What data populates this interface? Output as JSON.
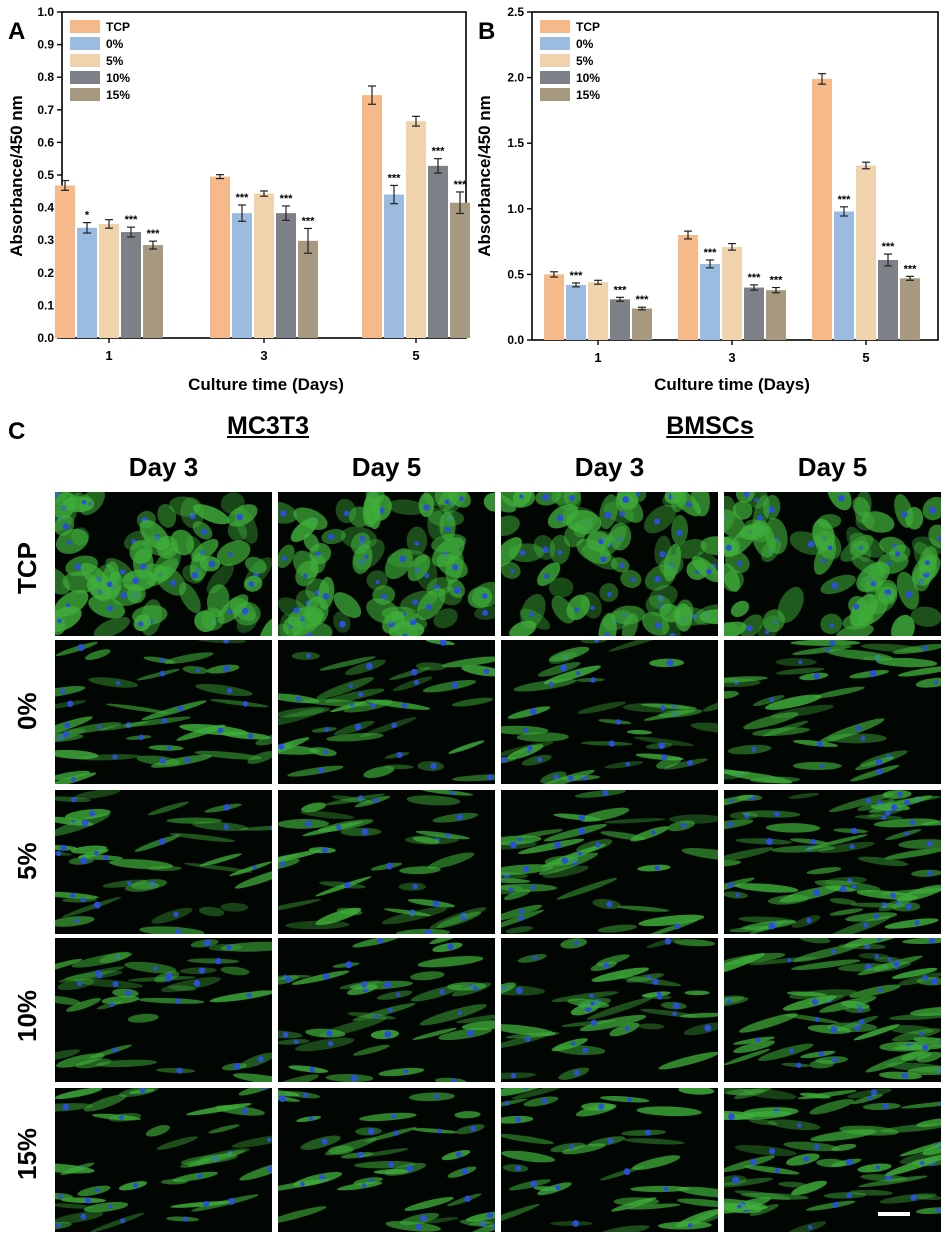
{
  "panel_labels": {
    "a": "A",
    "b": "B",
    "c": "C"
  },
  "chart_data": [
    {
      "type": "bar",
      "panel": "A",
      "categories": [
        "1",
        "3",
        "5"
      ],
      "xlabel": "Culture time (Days)",
      "ylabel": "Absorbance/450 nm",
      "ylim": [
        0,
        1.0
      ],
      "yticks": [
        "0.0",
        "0.1",
        "0.2",
        "0.3",
        "0.4",
        "0.5",
        "0.6",
        "0.7",
        "0.8",
        "0.9",
        "1.0"
      ],
      "legend_position": "top-left",
      "grid": false,
      "series": [
        {
          "name": "TCP",
          "color": "#f5b98a",
          "values": [
            0.468,
            0.495,
            0.745
          ],
          "errors": [
            0.015,
            0.006,
            0.028
          ],
          "sig": [
            "",
            "",
            ""
          ]
        },
        {
          "name": "0%",
          "color": "#9bbbe0",
          "values": [
            0.338,
            0.383,
            0.44
          ],
          "errors": [
            0.016,
            0.025,
            0.028
          ],
          "sig": [
            "*",
            "***",
            "***"
          ]
        },
        {
          "name": "5%",
          "color": "#f0d3ad",
          "values": [
            0.35,
            0.443,
            0.665
          ],
          "errors": [
            0.013,
            0.008,
            0.015
          ],
          "sig": [
            "",
            "",
            ""
          ]
        },
        {
          "name": "10%",
          "color": "#7e8087",
          "values": [
            0.325,
            0.383,
            0.528
          ],
          "errors": [
            0.015,
            0.022,
            0.022
          ],
          "sig": [
            "***",
            "***",
            "***"
          ]
        },
        {
          "name": "15%",
          "color": "#a79880",
          "values": [
            0.285,
            0.298,
            0.415
          ],
          "errors": [
            0.012,
            0.038,
            0.033
          ],
          "sig": [
            "***",
            "***",
            "***"
          ]
        }
      ]
    },
    {
      "type": "bar",
      "panel": "B",
      "categories": [
        "1",
        "3",
        "5"
      ],
      "xlabel": "Culture time (Days)",
      "ylabel": "Absorbance/450 nm",
      "ylim": [
        0,
        2.5
      ],
      "yticks": [
        "0.0",
        "0.5",
        "1.0",
        "1.5",
        "2.0",
        "2.5"
      ],
      "legend_position": "top-left",
      "grid": false,
      "series": [
        {
          "name": "TCP",
          "color": "#f5b98a",
          "values": [
            0.5,
            0.8,
            1.99
          ],
          "errors": [
            0.02,
            0.03,
            0.04
          ],
          "sig": [
            "",
            "",
            ""
          ]
        },
        {
          "name": "0%",
          "color": "#9bbbe0",
          "values": [
            0.42,
            0.58,
            0.98
          ],
          "errors": [
            0.015,
            0.03,
            0.035
          ],
          "sig": [
            "***",
            "***",
            "***"
          ]
        },
        {
          "name": "5%",
          "color": "#f0d3ad",
          "values": [
            0.44,
            0.71,
            1.33
          ],
          "errors": [
            0.015,
            0.025,
            0.025
          ],
          "sig": [
            "",
            "",
            ""
          ]
        },
        {
          "name": "10%",
          "color": "#7e8087",
          "values": [
            0.31,
            0.4,
            0.61
          ],
          "errors": [
            0.015,
            0.02,
            0.045
          ],
          "sig": [
            "***",
            "***",
            "***"
          ]
        },
        {
          "name": "15%",
          "color": "#a79880",
          "values": [
            0.24,
            0.38,
            0.47
          ],
          "errors": [
            0.01,
            0.02,
            0.015
          ],
          "sig": [
            "***",
            "***",
            "***"
          ]
        }
      ]
    }
  ],
  "micrograph_grid": {
    "groups": [
      "MC3T3",
      "BMSCs"
    ],
    "days": [
      "Day 3",
      "Day 5",
      "Day 3",
      "Day 5"
    ],
    "rows": [
      "TCP",
      "0%",
      "5%",
      "10%",
      "15%"
    ],
    "colors": {
      "background": "#020602",
      "actin": "#3fae3a",
      "nuclei": "#2a4fd8"
    },
    "scale_bar_color": "#ffffff"
  }
}
